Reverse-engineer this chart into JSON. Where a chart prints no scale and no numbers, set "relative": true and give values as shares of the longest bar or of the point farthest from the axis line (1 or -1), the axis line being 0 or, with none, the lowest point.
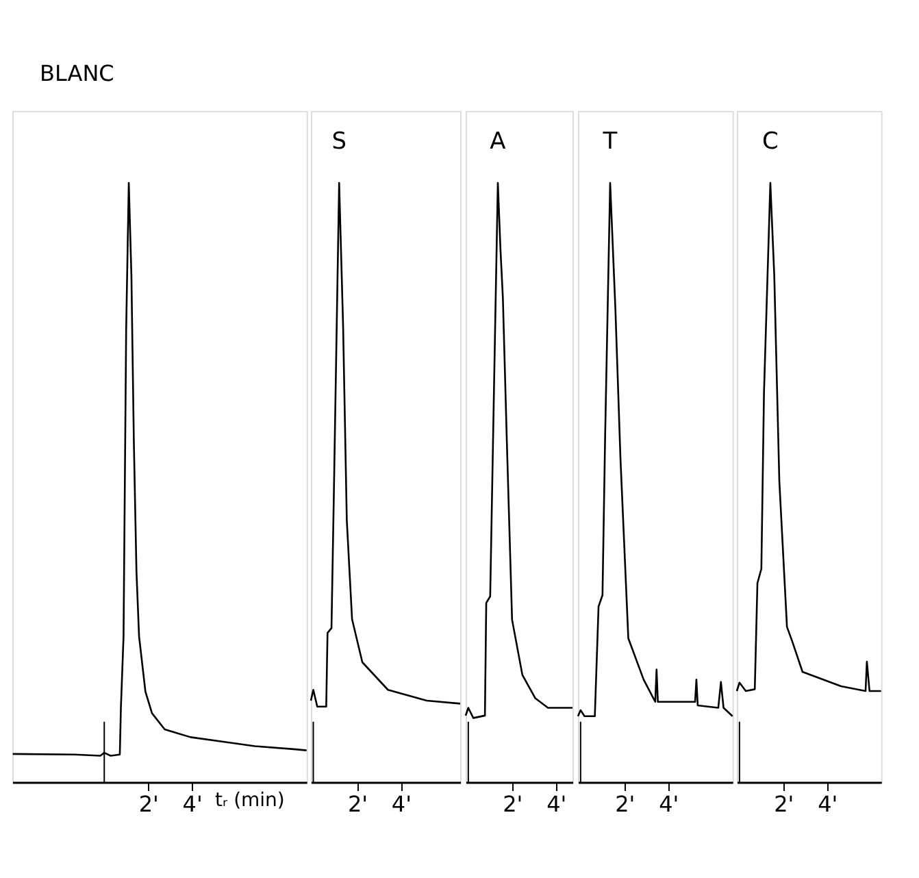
{
  "chart_data": [
    {
      "type": "line",
      "relative": true,
      "xlabel": "tᵣ (min)",
      "line_style": "solid",
      "xlim": [
        -4.2,
        9.24
      ],
      "xticks": [
        {
          "value": 2,
          "label": "2'"
        },
        {
          "value": 4,
          "label": "4'"
        }
      ],
      "ref_lines": [
        {
          "axis": "x",
          "value": 0,
          "label": null
        }
      ],
      "annotations": [
        "BLANC"
      ],
      "series": [
        {
          "color": "#000000",
          "x": [
            -4.18,
            -1.35,
            -0.18,
            0,
            0.29,
            0.71,
            0.76,
            0.88,
            1.0,
            1.12,
            1.24,
            1.35,
            1.47,
            1.59,
            1.88,
            2.18,
            2.76,
            3.94,
            5.71,
            6.88,
            8.65,
            9.24
          ],
          "values": [
            0.047,
            0.046,
            0.044,
            0.049,
            0.044,
            0.046,
            0.124,
            0.243,
            0.754,
            1.0,
            0.845,
            0.571,
            0.352,
            0.243,
            0.151,
            0.115,
            0.088,
            0.075,
            0.066,
            0.06,
            0.055,
            0.053
          ]
        }
      ]
    },
    {
      "type": "line",
      "relative": true,
      "line_style": "solid",
      "xlim": [
        -0.11,
        6.71
      ],
      "xticks": [
        {
          "value": 2,
          "label": "2'"
        },
        {
          "value": 4,
          "label": "4'"
        }
      ],
      "ref_lines": [
        {
          "axis": "x",
          "value": 0,
          "label": null
        }
      ],
      "annotations": [
        {
          "text": "S",
          "x": 1.18,
          "y": 1.0
        }
      ],
      "series": [
        {
          "color": "#000000",
          "x": [
            -0.11,
            0,
            0.18,
            0.59,
            0.65,
            0.83,
            0.94,
            1.18,
            1.36,
            1.53,
            1.77,
            2.24,
            3.41,
            5.18,
            6.71
          ],
          "values": [
            0.136,
            0.154,
            0.126,
            0.126,
            0.249,
            0.257,
            0.483,
            1.0,
            0.763,
            0.437,
            0.272,
            0.2,
            0.154,
            0.136,
            0.131
          ]
        }
      ]
    },
    {
      "type": "line",
      "relative": true,
      "line_style": "solid",
      "xlim": [
        -0.12,
        4.76
      ],
      "xticks": [
        {
          "value": 2,
          "label": "2'"
        },
        {
          "value": 4,
          "label": "4'"
        }
      ],
      "ref_lines": [
        {
          "axis": "x",
          "value": 0,
          "label": null
        }
      ],
      "annotations": [
        {
          "text": "A",
          "x": 1.35,
          "y": 1.0
        }
      ],
      "series": [
        {
          "color": "#000000",
          "x": [
            -0.12,
            0,
            0.23,
            0.76,
            0.82,
            1.0,
            1.17,
            1.35,
            1.47,
            1.58,
            1.76,
            2.0,
            2.47,
            3.06,
            3.64,
            4.76
          ],
          "values": [
            0.111,
            0.124,
            0.107,
            0.111,
            0.299,
            0.31,
            0.648,
            1.0,
            0.889,
            0.808,
            0.57,
            0.271,
            0.179,
            0.14,
            0.124,
            0.124
          ]
        }
      ]
    },
    {
      "type": "line",
      "relative": true,
      "line_style": "solid",
      "xlim": [
        -0.12,
        6.94
      ],
      "xticks": [
        {
          "value": 2,
          "label": "2'"
        },
        {
          "value": 4,
          "label": "4'"
        }
      ],
      "ref_lines": [
        {
          "axis": "x",
          "value": 0,
          "label": null
        }
      ],
      "annotations": [
        {
          "text": "T",
          "x": 1.35,
          "y": 1.0
        }
      ],
      "series": [
        {
          "color": "#000000",
          "x": [
            -0.12,
            0,
            0.18,
            0.65,
            0.82,
            1.0,
            1.12,
            1.35,
            1.59,
            1.82,
            2.18,
            2.88,
            3.41,
            3.47,
            3.53,
            5.23,
            5.29,
            5.35,
            6.29,
            6.41,
            6.53,
            6.94
          ],
          "values": [
            0.11,
            0.12,
            0.11,
            0.11,
            0.293,
            0.312,
            0.576,
            1.0,
            0.789,
            0.541,
            0.24,
            0.171,
            0.134,
            0.188,
            0.134,
            0.134,
            0.171,
            0.128,
            0.124,
            0.167,
            0.124,
            0.11
          ]
        }
      ]
    },
    {
      "type": "line",
      "relative": true,
      "line_style": "solid",
      "xlim": [
        -0.12,
        6.47
      ],
      "xticks": [
        {
          "value": 2,
          "label": "2'"
        },
        {
          "value": 4,
          "label": "4'"
        }
      ],
      "ref_lines": [
        {
          "axis": "x",
          "value": 0,
          "label": null
        }
      ],
      "annotations": [
        {
          "text": "C",
          "x": 1.41,
          "y": 1.0
        }
      ],
      "series": [
        {
          "color": "#000000",
          "x": [
            -0.12,
            0,
            0.29,
            0.7,
            0.82,
            1.0,
            1.12,
            1.41,
            1.59,
            1.82,
            2.17,
            2.41,
            2.88,
            4.64,
            5.76,
            5.82,
            5.94,
            6.47
          ],
          "values": [
            0.152,
            0.166,
            0.152,
            0.155,
            0.332,
            0.356,
            0.65,
            1.0,
            0.845,
            0.503,
            0.259,
            0.235,
            0.184,
            0.16,
            0.152,
            0.201,
            0.152,
            0.152
          ]
        }
      ]
    }
  ]
}
